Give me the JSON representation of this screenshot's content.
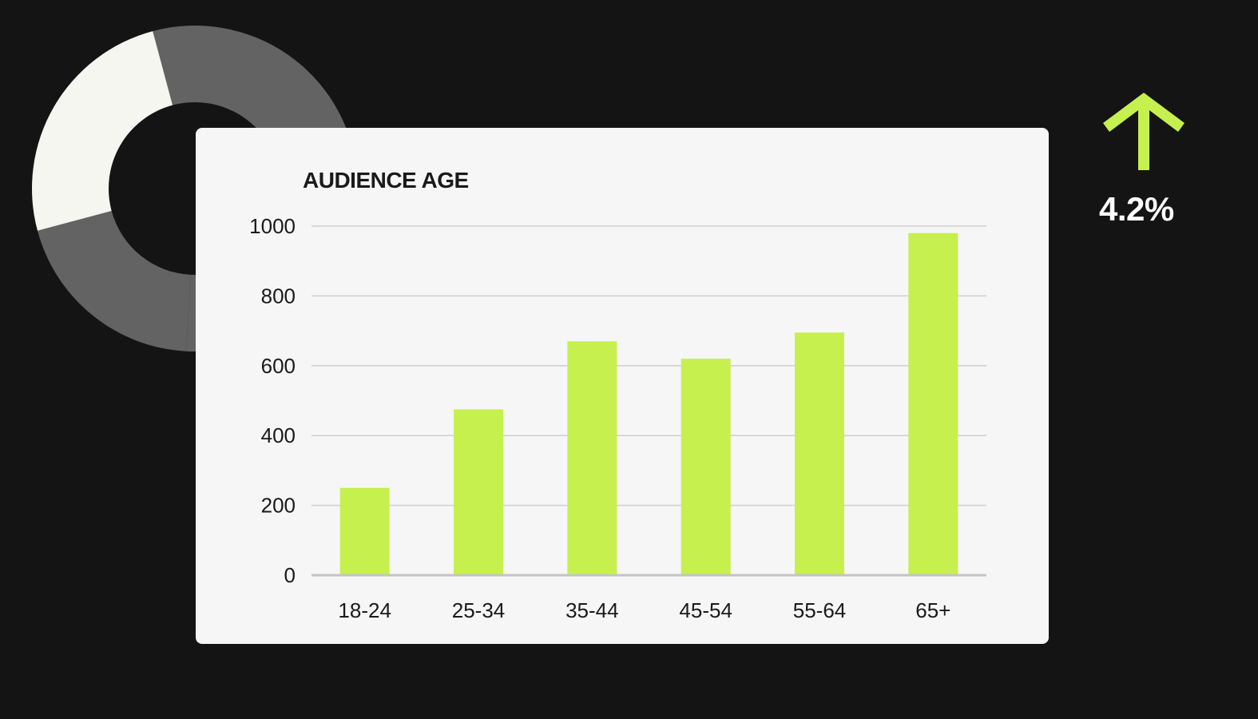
{
  "colors": {
    "background": "#141414",
    "card": "#f6f6f6",
    "accent": "#c5f04e",
    "donut_light": "#f6f6f1",
    "donut_dark": "#636363",
    "gridline": "#cccccc"
  },
  "donut": {
    "segments": [
      {
        "value": 0.55,
        "color": "#636363"
      },
      {
        "value": 0.2,
        "color": "#636363"
      },
      {
        "value": 0.25,
        "color": "#f6f6f1"
      }
    ]
  },
  "kpi": {
    "icon": "arrow-up-icon",
    "value": "4.2%"
  },
  "chart_data": {
    "type": "bar",
    "title": "AUDIENCE AGE",
    "categories": [
      "18-24",
      "25-34",
      "35-44",
      "45-54",
      "55-64",
      "65+"
    ],
    "values": [
      250,
      475,
      670,
      620,
      695,
      980
    ],
    "yticks": [
      0,
      200,
      400,
      600,
      800,
      1000
    ],
    "ylim": [
      0,
      1000
    ],
    "xlabel": "",
    "ylabel": "",
    "grid": true
  }
}
